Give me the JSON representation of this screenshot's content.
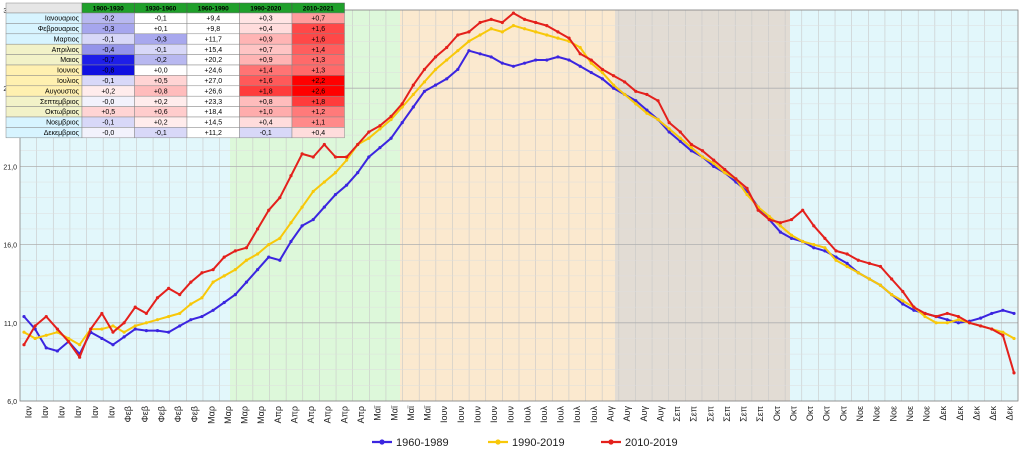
{
  "chart_data": {
    "type": "line",
    "yticks": [
      "6,0",
      "11,0",
      "16,0",
      "21,0",
      "26,0",
      "31,0"
    ],
    "ylim": [
      6,
      31
    ],
    "grid": true,
    "legend_position": "bottom",
    "month_bands": [
      {
        "label": "Ιαν",
        "color": "#E2F7FB"
      },
      {
        "label": "Φεβ",
        "color": "#E2F7FB"
      },
      {
        "label": "Μαρ",
        "color": "#E2F7FB"
      },
      {
        "label": "Απρ",
        "color": "#DDF8DA"
      },
      {
        "label": "Μαϊ",
        "color": "#DDF8DA"
      },
      {
        "label": "Ιουν",
        "color": "#FBE9CF"
      },
      {
        "label": "Ιουλ",
        "color": "#FBE9CF"
      },
      {
        "label": "Αυγ",
        "color": "#FBE9CF"
      },
      {
        "label": "Σεπ",
        "color": "#E2DCD4"
      },
      {
        "label": "Οκτ",
        "color": "#E2DCD4"
      },
      {
        "label": "Νοε",
        "color": "#E2F7FB"
      },
      {
        "label": "Δεκ",
        "color": "#E2F7FB"
      }
    ],
    "xtick_labels": [
      "Ιαν",
      "Ιαν",
      "Ιαν",
      "Ιαν",
      "Ιαν",
      "Ιαν",
      "Φεβ",
      "Φεβ",
      "Φεβ",
      "Φεβ",
      "Φεβ",
      "Μαρ",
      "Μαρ",
      "Μαρ",
      "Μαρ",
      "Απρ",
      "Απρ",
      "Απρ",
      "Απρ",
      "Απρ",
      "Απρ",
      "Μαϊ",
      "Μαϊ",
      "Μαϊ",
      "Μαϊ",
      "Ιουν",
      "Ιουν",
      "Ιουν",
      "Ιουν",
      "Ιουν",
      "Ιουλ",
      "Ιουλ",
      "Ιουλ",
      "Ιουλ",
      "Ιουλ",
      "Αυγ",
      "Αυγ",
      "Αυγ",
      "Αυγ",
      "Σεπ",
      "Σεπ",
      "Σεπ",
      "Σεπ",
      "Σεπ",
      "Σεπ",
      "Οκτ",
      "Οκτ",
      "Οκτ",
      "Οκτ",
      "Οκτ",
      "Νοε",
      "Νοε",
      "Νοε",
      "Νοε",
      "Νοε",
      "Δεκ",
      "Δεκ",
      "Δεκ",
      "Δεκ",
      "Δεκ"
    ],
    "series": [
      {
        "name": "1960-1989",
        "color": "#3B25E0",
        "values": [
          11.4,
          10.6,
          9.4,
          9.2,
          9.8,
          9.0,
          10.4,
          10.0,
          9.6,
          10.1,
          10.6,
          10.5,
          10.5,
          10.4,
          10.8,
          11.2,
          11.4,
          11.8,
          12.3,
          12.8,
          13.6,
          14.4,
          15.2,
          15.0,
          16.2,
          17.2,
          17.6,
          18.4,
          19.2,
          19.8,
          20.6,
          21.6,
          22.2,
          22.8,
          23.8,
          24.8,
          25.8,
          26.2,
          26.6,
          27.2,
          28.4,
          28.2,
          28.0,
          27.6,
          27.4,
          27.6,
          27.8,
          27.8,
          28.0,
          27.8,
          27.4,
          27.0,
          26.6,
          26.0,
          25.6,
          25.2,
          24.6,
          24.0,
          23.2,
          22.6,
          22.0,
          21.6,
          21.0,
          20.6,
          20.0,
          19.4,
          18.4,
          17.6,
          16.8,
          16.4,
          16.2,
          15.8,
          15.6,
          15.2,
          14.8,
          14.2,
          13.8,
          13.4,
          12.8,
          12.2,
          11.8,
          11.6,
          11.4,
          11.2,
          11.0,
          11.1,
          11.3,
          11.6,
          11.8,
          11.6
        ]
      },
      {
        "name": "1990-2019",
        "color": "#F8C809",
        "values": [
          10.4,
          10.0,
          10.2,
          10.4,
          10.0,
          9.6,
          10.6,
          10.6,
          10.8,
          10.4,
          10.8,
          11.0,
          11.2,
          11.4,
          11.6,
          12.2,
          12.6,
          13.6,
          14.0,
          14.4,
          15.0,
          15.4,
          16.0,
          16.4,
          17.4,
          18.4,
          19.4,
          20.0,
          20.6,
          21.4,
          22.4,
          22.8,
          23.4,
          24.0,
          24.8,
          25.6,
          26.4,
          27.2,
          27.8,
          28.4,
          29.0,
          29.4,
          29.8,
          29.6,
          30.0,
          29.8,
          29.6,
          29.4,
          29.2,
          29.0,
          28.6,
          27.6,
          27.0,
          26.2,
          25.6,
          25.0,
          24.4,
          24.0,
          23.4,
          22.8,
          22.2,
          21.6,
          21.2,
          20.6,
          20.2,
          19.2,
          18.4,
          17.8,
          17.2,
          16.6,
          16.2,
          16.0,
          15.8,
          15.0,
          14.6,
          14.2,
          13.8,
          13.4,
          12.8,
          12.4,
          12.0,
          11.4,
          11.0,
          11.0,
          11.2,
          11.0,
          10.8,
          10.6,
          10.4,
          10.0
        ]
      },
      {
        "name": "2010-2019",
        "color": "#E4201C",
        "values": [
          9.6,
          10.8,
          11.4,
          10.6,
          9.8,
          8.8,
          10.6,
          11.6,
          10.4,
          11.0,
          12.0,
          11.6,
          12.6,
          13.2,
          12.8,
          13.6,
          14.2,
          14.4,
          15.2,
          15.6,
          15.8,
          17.0,
          18.2,
          19.0,
          20.4,
          21.8,
          21.6,
          22.4,
          21.6,
          21.6,
          22.4,
          23.2,
          23.6,
          24.2,
          25.0,
          26.2,
          27.2,
          28.0,
          28.6,
          29.4,
          29.6,
          30.2,
          30.4,
          30.2,
          30.8,
          30.4,
          30.2,
          30.0,
          29.6,
          29.2,
          28.2,
          27.8,
          27.2,
          26.8,
          26.4,
          25.8,
          25.6,
          25.2,
          23.8,
          23.2,
          22.4,
          22.0,
          21.4,
          20.8,
          20.2,
          19.6,
          18.2,
          17.6,
          17.4,
          17.6,
          18.2,
          17.2,
          16.4,
          15.6,
          15.4,
          15.0,
          14.8,
          14.6,
          13.8,
          13.0,
          12.0,
          11.6,
          11.4,
          11.6,
          11.4,
          11.0,
          10.8,
          10.6,
          10.2,
          7.8
        ]
      }
    ]
  },
  "anomaly_table": {
    "headers": [
      "1900-1930",
      "1930-1960",
      "1960-1990",
      "1990-2020",
      "2010-2021"
    ],
    "rows": [
      {
        "month": "Ιανουαριος",
        "values": [
          "-0,2",
          "-0,1",
          "+9,4",
          "+0,3",
          "+0,7"
        ],
        "colors": [
          "#B8B8F0",
          "#FFFFFF",
          "#FFFFFF",
          "#FFE4E4",
          "#FF9C9C"
        ]
      },
      {
        "month": "Φεβρουαριος",
        "values": [
          "-0,3",
          "+0,1",
          "+9,8",
          "+0,4",
          "+1,6"
        ],
        "colors": [
          "#A6A6EE",
          "#FFFFFF",
          "#FFFFFF",
          "#FFDCDC",
          "#FF4848"
        ]
      },
      {
        "month": "Μαρτιος",
        "values": [
          "-0,1",
          "-0,3",
          "+11,7",
          "+0,9",
          "+1,6"
        ],
        "colors": [
          "#D8D8F8",
          "#A8A8EE",
          "#FFFFFF",
          "#FFB4B4",
          "#FF4848"
        ]
      },
      {
        "month": "Απριλιος",
        "values": [
          "-0,4",
          "-0,1",
          "+15,4",
          "+0,7",
          "+1,4"
        ],
        "colors": [
          "#9494EA",
          "#D8D8F8",
          "#FFFFFF",
          "#FFC4C4",
          "#FF5E5E"
        ]
      },
      {
        "month": "Μαιος",
        "values": [
          "-0,7",
          "-0,2",
          "+20,2",
          "+0,9",
          "+1,3"
        ],
        "colors": [
          "#1E1EE8",
          "#B8B8F0",
          "#FFFFFF",
          "#FFB4B4",
          "#FF6A6A"
        ]
      },
      {
        "month": "Ιουνιος",
        "values": [
          "-0,8",
          "+0,0",
          "+24,6",
          "+1,4",
          "+1,3"
        ],
        "colors": [
          "#1010E0",
          "#FFFFFF",
          "#FFFFFF",
          "#FF7474",
          "#FF6A6A"
        ]
      },
      {
        "month": "Ιουλιος",
        "values": [
          "-0,1",
          "+0,5",
          "+27,0",
          "+1,6",
          "+2,2"
        ],
        "colors": [
          "#D8D8F8",
          "#FFD4D4",
          "#FFFFFF",
          "#FF5A5A",
          "#FF0000"
        ]
      },
      {
        "month": "Αυγουστος",
        "values": [
          "+0,2",
          "+0,8",
          "+26,6",
          "+1,8",
          "+2,6"
        ],
        "colors": [
          "#FFECEC",
          "#FFBCBC",
          "#FFFFFF",
          "#FF3C3C",
          "#FF0000"
        ]
      },
      {
        "month": "Σεπτεμβριος",
        "values": [
          "-0,0",
          "+0,2",
          "+23,3",
          "+0,8",
          "+1,8"
        ],
        "colors": [
          "#F2F2FC",
          "#FFECEC",
          "#FFFFFF",
          "#FFBCBC",
          "#FF3C3C"
        ]
      },
      {
        "month": "Οκτωβριος",
        "values": [
          "+0,5",
          "+0,6",
          "+18,4",
          "+1,0",
          "+1,2"
        ],
        "colors": [
          "#FFD4D4",
          "#FFCCCC",
          "#FFFFFF",
          "#FFACAC",
          "#FF7A7A"
        ]
      },
      {
        "month": "Νοεμβριος",
        "values": [
          "-0,1",
          "+0,2",
          "+14,5",
          "+0,4",
          "+1,1"
        ],
        "colors": [
          "#D8D8F8",
          "#FFECEC",
          "#FFFFFF",
          "#FFDCDC",
          "#FF8A8A"
        ]
      },
      {
        "month": "Δεκεμβριος",
        "values": [
          "-0,0",
          "-0,1",
          "+11,2",
          "-0,1",
          "+0,4"
        ],
        "colors": [
          "#F2F2FC",
          "#D8D8F8",
          "#FFFFFF",
          "#D8D8F8",
          "#FFDCDC"
        ]
      }
    ],
    "header_color": "#1FA02B",
    "month_color": "#D7F4FF",
    "summer_month_color": "#FFF0B0",
    "spring_autumn_month_color": "#F2F2C8"
  }
}
